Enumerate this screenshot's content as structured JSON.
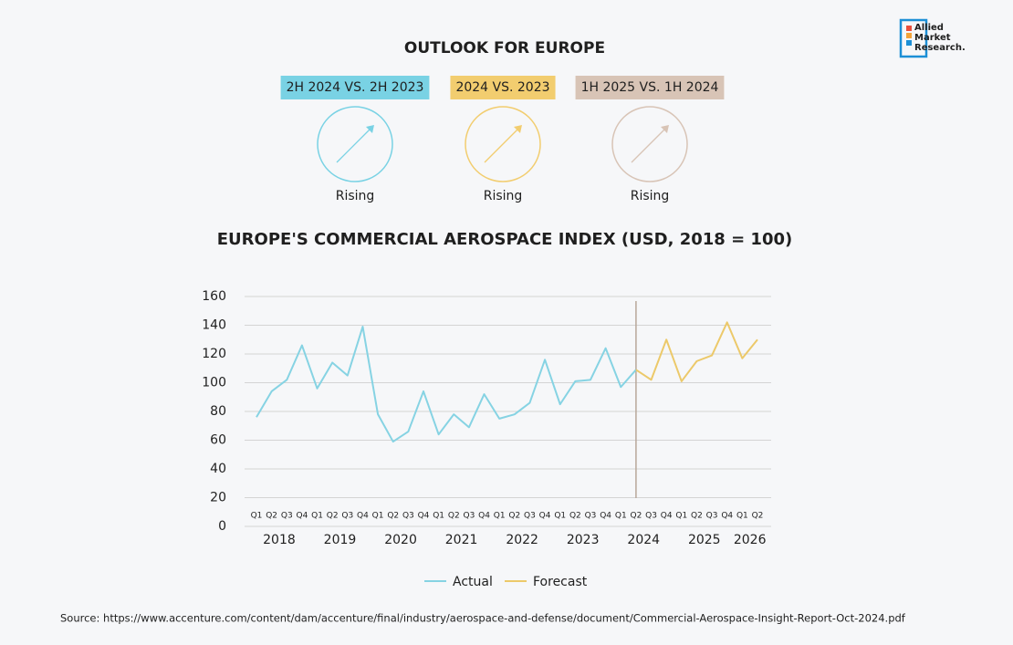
{
  "logo": [
    "Allied",
    "Market",
    "Research."
  ],
  "outlook": {
    "title": "OUTLOOK FOR EUROPE",
    "items": [
      {
        "label": "2H 2024 VS. 2H 2023",
        "status": "Rising",
        "color": "#79d2e4"
      },
      {
        "label": "2024 VS. 2023",
        "status": "Rising",
        "color": "#f2cd6f"
      },
      {
        "label": "1H 2025 VS. 1H 2024",
        "status": "Rising",
        "color": "#d8c4b6"
      }
    ]
  },
  "chart_data": {
    "type": "line",
    "title": "EUROPE'S COMMERCIAL AEROSPACE INDEX (USD, 2018 = 100)",
    "categories": [
      "Q1",
      "Q2",
      "Q3",
      "Q4",
      "Q1",
      "Q2",
      "Q3",
      "Q4",
      "Q1",
      "Q2",
      "Q3",
      "Q4",
      "Q1",
      "Q2",
      "Q3",
      "Q4",
      "Q1",
      "Q2",
      "Q3",
      "Q4",
      "Q1",
      "Q2",
      "Q3",
      "Q4",
      "Q1",
      "Q2",
      "Q3",
      "Q4",
      "Q1",
      "Q2",
      "Q3",
      "Q4",
      "Q1",
      "Q2"
    ],
    "years": [
      "2018",
      "2019",
      "2020",
      "2021",
      "2022",
      "2023",
      "2024",
      "2025",
      "2026"
    ],
    "series": [
      {
        "name": "Actual",
        "color": "#86d3e3",
        "values": [
          76,
          94,
          102,
          126,
          96,
          114,
          105,
          139,
          78,
          59,
          66,
          94,
          64,
          78,
          69,
          92,
          75,
          78,
          86,
          116,
          85,
          101,
          102,
          124,
          97,
          109,
          null,
          null,
          null,
          null,
          null,
          null,
          null,
          null
        ]
      },
      {
        "name": "Forecast",
        "color": "#ecc96a",
        "values": [
          null,
          null,
          null,
          null,
          null,
          null,
          null,
          null,
          null,
          null,
          null,
          null,
          null,
          null,
          null,
          null,
          null,
          null,
          null,
          null,
          null,
          null,
          null,
          null,
          null,
          109,
          102,
          130,
          101,
          115,
          119,
          142,
          117,
          130
        ]
      }
    ],
    "ylim": [
      0,
      160
    ],
    "yticks": [
      0,
      20,
      40,
      60,
      80,
      100,
      120,
      140,
      160
    ],
    "grid": true,
    "legend": "bottom",
    "source": "Source: https://www.accenture.com/content/dam/accenture/final/industry/aerospace-and-defense/document/Commercial-Aerospace-Insight-Report-Oct-2024.pdf"
  }
}
